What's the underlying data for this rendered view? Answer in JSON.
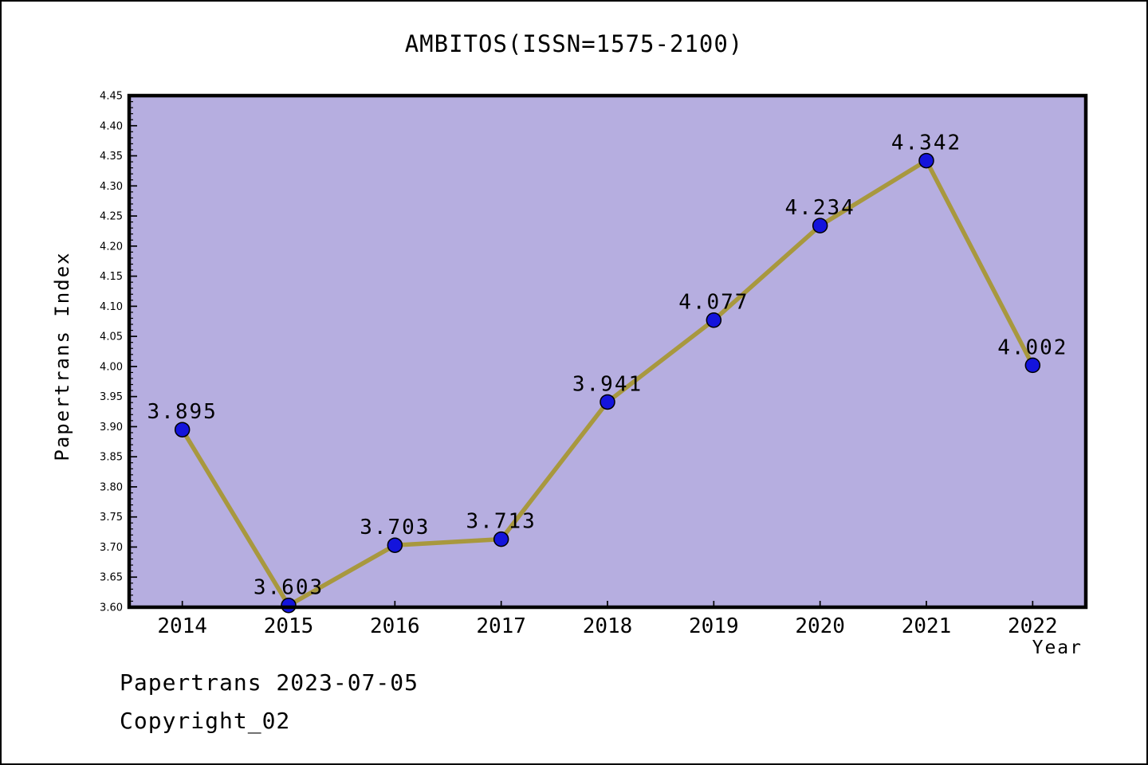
{
  "header": {
    "title": "AMBITOS(ISSN=1575-2100)"
  },
  "footer": {
    "line1": "Papertrans 2023-07-05",
    "line2": "Copyright_02"
  },
  "chart_data": {
    "type": "line",
    "title": "AMBITOS(ISSN=1575-2100)",
    "xlabel": "Year",
    "ylabel": "Papertrans Index",
    "categories": [
      2014,
      2015,
      2016,
      2017,
      2018,
      2019,
      2020,
      2021,
      2022
    ],
    "values": [
      3.895,
      3.603,
      3.703,
      3.713,
      3.941,
      4.077,
      4.234,
      4.342,
      4.002
    ],
    "point_labels": [
      "3.895",
      "3.603",
      "3.703",
      "3.713",
      "3.941",
      "4.077",
      "4.234",
      "4.342",
      "4.002"
    ],
    "xlim": [
      2013.5,
      2022.5
    ],
    "ylim": [
      3.6,
      4.45
    ],
    "y_major_step": 0.05,
    "y_minor_step": 0.01,
    "y_tick_decimals": 2,
    "grid": false,
    "legend": "none",
    "colors": {
      "plot_background": "#b6aee0",
      "line": "#a8983e",
      "marker": "#1414dc",
      "marker_edge": "#000000",
      "spine": "#000000",
      "text": "#000000"
    }
  }
}
